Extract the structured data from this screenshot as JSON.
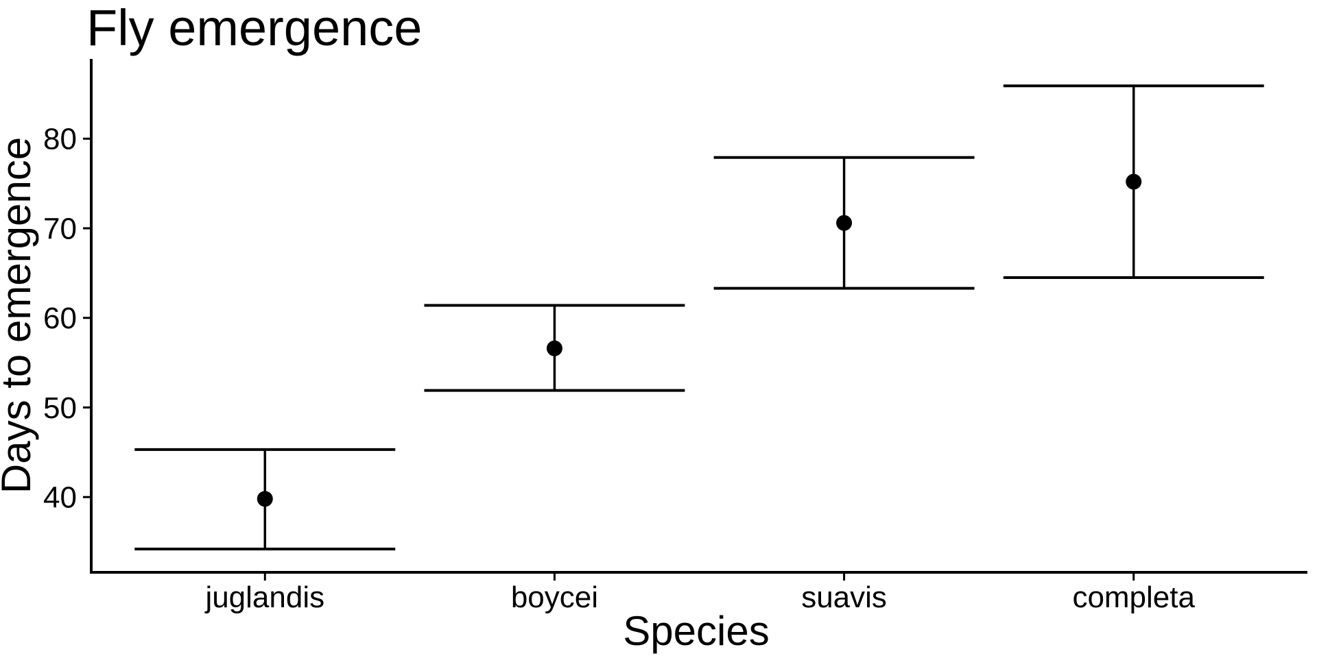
{
  "page": {
    "background": "#ffffff",
    "foreground": "#000000"
  },
  "chart_data": {
    "type": "pointrange",
    "title": "Fly emergence",
    "xlabel": "Species",
    "ylabel": "Days to emergence",
    "categories": [
      "juglandis",
      "boycei",
      "suavis",
      "completa"
    ],
    "points": [
      {
        "category": "juglandis",
        "mean": 39.8,
        "lower": 34.2,
        "upper": 45.3
      },
      {
        "category": "boycei",
        "mean": 56.6,
        "lower": 51.9,
        "upper": 61.4
      },
      {
        "category": "suavis",
        "mean": 70.6,
        "lower": 63.3,
        "upper": 77.9
      },
      {
        "category": "completa",
        "mean": 75.2,
        "lower": 64.5,
        "upper": 85.9
      }
    ],
    "yticks": [
      40,
      50,
      60,
      70,
      80
    ],
    "ylim": [
      31.6,
      88.9
    ],
    "grid": false,
    "legend": false,
    "marker": "filled-circle",
    "errorbar_cap_width_fraction": 0.9,
    "colors": {
      "point": "#000000",
      "errorbar": "#000000",
      "axis": "#000000",
      "text": "#000000",
      "background": "#ffffff"
    }
  }
}
